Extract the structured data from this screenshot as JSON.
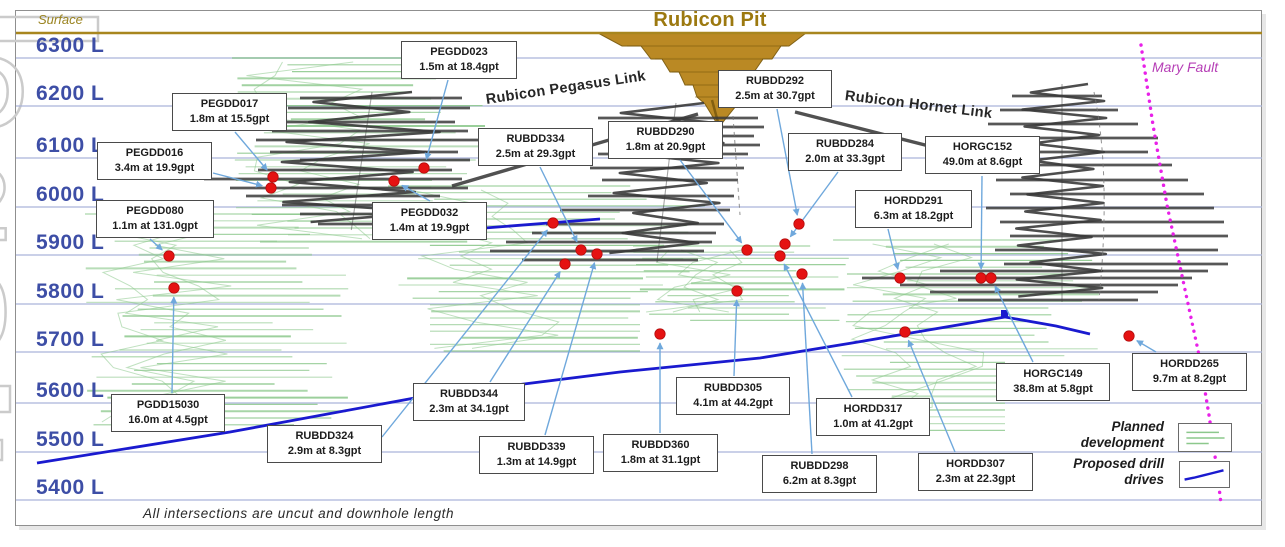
{
  "title": "Rubicon Pit",
  "surface_label": "Surface",
  "levels": [
    "6300 L",
    "6200 L",
    "6100 L",
    "6000 L",
    "5900 L",
    "5800 L",
    "5700 L",
    "5600 L",
    "5500 L",
    "5400 L"
  ],
  "links": {
    "pegasus": "Rubicon Pegasus Link",
    "hornet": "Rubicon Hornet Link"
  },
  "fault_label": "Mary Fault",
  "footnote": "All intersections are uncut and downhole length",
  "legend": [
    {
      "label": "Planned development"
    },
    {
      "label": "Proposed drill drives"
    }
  ],
  "callouts": [
    {
      "hole": "PEGDD023",
      "intercept": "1.5m at 18.4gpt"
    },
    {
      "hole": "PEGDD017",
      "intercept": "1.8m at 15.5gpt"
    },
    {
      "hole": "PEGDD016",
      "intercept": "3.4m at 19.9gpt"
    },
    {
      "hole": "PEGDD080",
      "intercept": "1.1m at 131.0gpt"
    },
    {
      "hole": "PEGDD032",
      "intercept": "1.4m at 19.9gpt"
    },
    {
      "hole": "PGDD15030",
      "intercept": "16.0m at 4.5gpt"
    },
    {
      "hole": "RUBDD324",
      "intercept": "2.9m at 8.3gpt"
    },
    {
      "hole": "RUBDD334",
      "intercept": "2.5m at 29.3gpt"
    },
    {
      "hole": "RUBDD290",
      "intercept": "1.8m at 20.9gpt"
    },
    {
      "hole": "RUBDD292",
      "intercept": "2.5m at 30.7gpt"
    },
    {
      "hole": "RUBDD284",
      "intercept": "2.0m at 33.3gpt"
    },
    {
      "hole": "HORGC152",
      "intercept": "49.0m at 8.6gpt"
    },
    {
      "hole": "HORDD291",
      "intercept": "6.3m at 18.2gpt"
    },
    {
      "hole": "RUBDD344",
      "intercept": "2.3m at 34.1gpt"
    },
    {
      "hole": "RUBDD339",
      "intercept": "1.3m at 14.9gpt"
    },
    {
      "hole": "RUBDD360",
      "intercept": "1.8m at 31.1gpt"
    },
    {
      "hole": "RUBDD305",
      "intercept": "4.1m at 44.2gpt"
    },
    {
      "hole": "RUBDD298",
      "intercept": "6.2m at 8.3gpt"
    },
    {
      "hole": "HORDD317",
      "intercept": "1.0m at 41.2gpt"
    },
    {
      "hole": "HORDD307",
      "intercept": "2.3m at 22.3gpt"
    },
    {
      "hole": "HORGC149",
      "intercept": "38.8m at 5.8gpt"
    },
    {
      "hole": "HORDD265",
      "intercept": "9.7m at 8.2gpt"
    }
  ],
  "colors": {
    "title_brown": "#9C7910",
    "surface_line": "#A8861E",
    "level_blue": "#3D4EA6",
    "gridline_blue": "#AAB4D9",
    "planned_development_green": "#8CC88C",
    "proposed_drive_blue": "#1A1ACF",
    "existing_development_gray": "#3A3A3A",
    "fault_magenta": "#E820E8",
    "intersection_dot_red": "#E51212",
    "leader_arrow_blue": "#6FA8DC",
    "pit_gold": "#B8861D"
  }
}
